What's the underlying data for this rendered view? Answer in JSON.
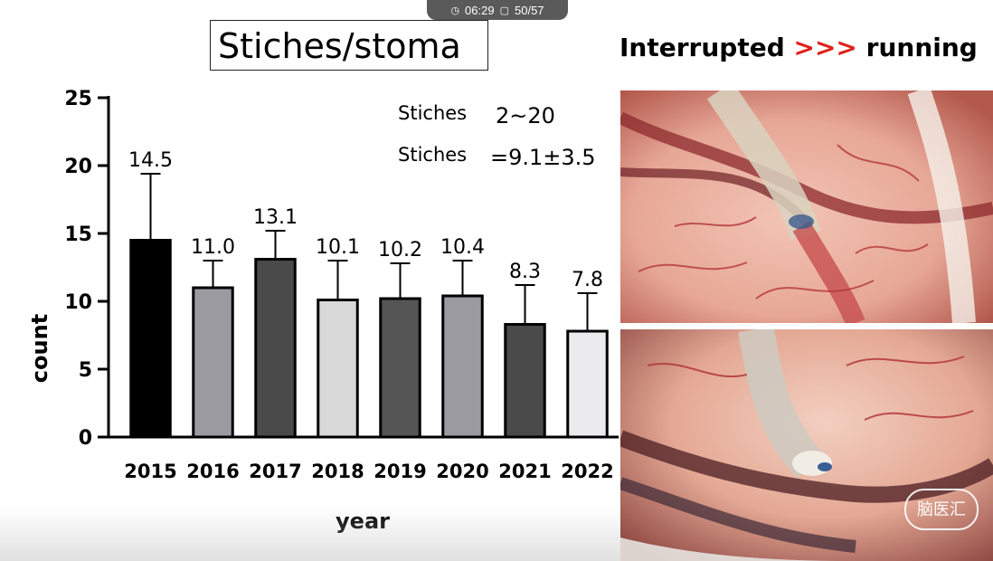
{
  "player": {
    "time": "06:29",
    "slide": "50/57",
    "clock_icon": "clock-icon",
    "slide_icon": "slide-icon"
  },
  "slide_title": "Stiches/stoma",
  "right_title": {
    "left": "Interrupted",
    "arrows": ">>>",
    "right": "running",
    "arrow_color": "#e0201b"
  },
  "annotations": {
    "range_label": "Stiches",
    "range_value": "2~20",
    "mean_label": "Stiches",
    "mean_value": "=9.1±3.5"
  },
  "chart_data": {
    "type": "bar",
    "title": "",
    "xlabel": "year",
    "ylabel": "count",
    "ylim": [
      0,
      25
    ],
    "yticks": [
      0,
      5,
      10,
      15,
      20,
      25
    ],
    "categories": [
      "2015",
      "2016",
      "2017",
      "2018",
      "2019",
      "2020",
      "2021",
      "2022"
    ],
    "values": [
      14.5,
      11.0,
      13.1,
      10.1,
      10.2,
      10.4,
      8.3,
      7.8
    ],
    "value_labels": [
      "14.5",
      "11.0",
      "13.1",
      "10.1",
      "10.2",
      "10.4",
      "8.3",
      "7.8"
    ],
    "error_upper": [
      19.4,
      13.0,
      15.2,
      13.0,
      12.8,
      13.0,
      11.2,
      10.6
    ],
    "bar_colors": [
      "#000000",
      "#9a9aa0",
      "#4a4a4a",
      "#d9d9d9",
      "#555555",
      "#9a9aa0",
      "#4a4a4a",
      "#ebebee"
    ],
    "grid": false,
    "legend": "none"
  },
  "watermark": "脑医汇",
  "photos": {
    "top": "surgical-photo-interrupted",
    "bottom": "surgical-photo-running"
  }
}
